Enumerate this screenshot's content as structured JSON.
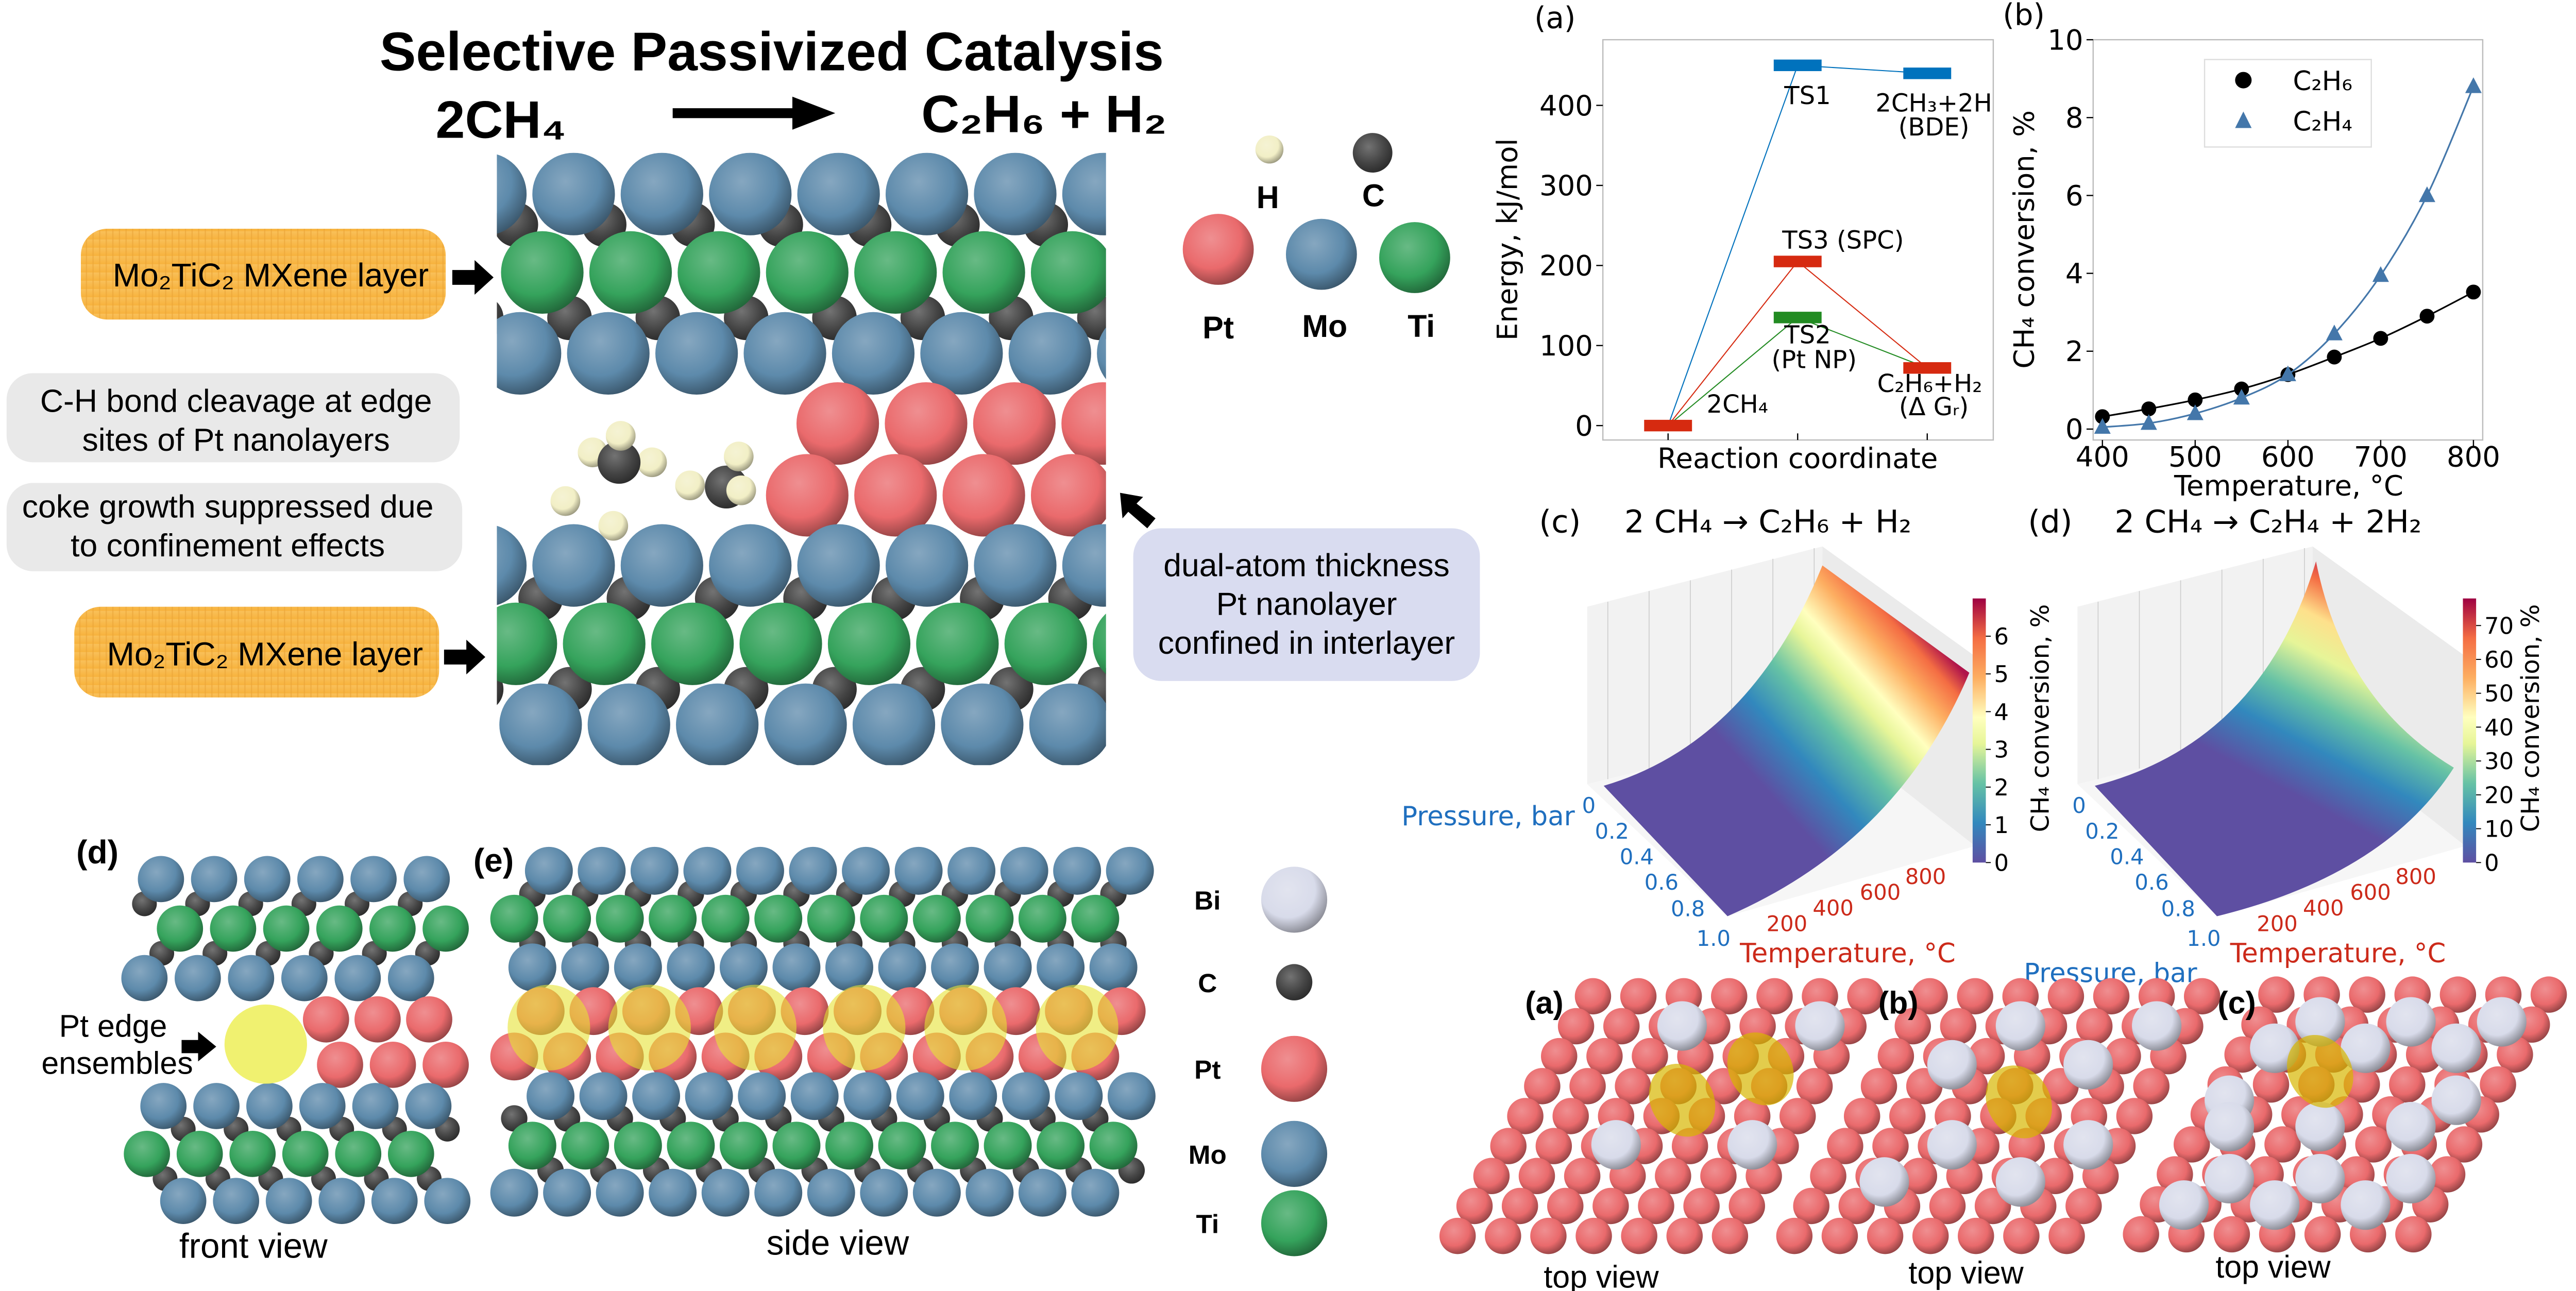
{
  "title": "Selective Passivized Catalysis",
  "reaction": {
    "reactant": "2CH₄",
    "product": "C₂H₆ + H₂"
  },
  "labels": {
    "mxene_top": "Mo₂TiC₂ MXene layer",
    "mxene_bottom": "Mo₂TiC₂ MXene layer",
    "ch_cleavage": [
      "C-H bond cleavage at edge",
      "sites of Pt nanolayers"
    ],
    "coke": [
      "coke growth suppressed due",
      "to confinement effects"
    ],
    "pt_layer": [
      "dual-atom thickness",
      "Pt nanolayer",
      "confined in interlayer"
    ]
  },
  "atom_legend_top": [
    {
      "symbol": "H",
      "color": "#f2efc6"
    },
    {
      "symbol": "C",
      "color": "#444444"
    },
    {
      "symbol": "Pt",
      "color": "#ea6a6c"
    },
    {
      "symbol": "Mo",
      "color": "#5d8aab"
    },
    {
      "symbol": "Ti",
      "color": "#35a35c"
    }
  ],
  "panel_d": {
    "label": "(d)",
    "edge_label": [
      "Pt edge",
      "ensembles"
    ],
    "caption": "front view"
  },
  "panel_e": {
    "label": "(e)",
    "caption": "side view"
  },
  "atom_legend_bottom": [
    {
      "symbol": "Bi",
      "color": "#d8dbea"
    },
    {
      "symbol": "C",
      "color": "#444444"
    },
    {
      "symbol": "Pt",
      "color": "#ea6a6c"
    },
    {
      "symbol": "Mo",
      "color": "#5d8aab"
    },
    {
      "symbol": "Ti",
      "color": "#35a35c"
    }
  ],
  "top_views": [
    {
      "label": "(a)",
      "caption": "top view"
    },
    {
      "label": "(b)",
      "caption": "top view"
    },
    {
      "label": "(c)",
      "caption": "top view"
    }
  ],
  "chart_data": [
    {
      "panel": "(a)",
      "type": "line",
      "xlabel": "Reaction coordinate",
      "ylabel": "Energy, kJ/mol",
      "ylim": [
        -18,
        482
      ],
      "yticks": [
        0,
        100,
        200,
        300,
        400
      ],
      "series": [
        {
          "name": "TS1 path",
          "color": "#0072bd",
          "points": [
            [
              1,
              0
            ],
            [
              2,
              450
            ],
            [
              3,
              440
            ]
          ]
        },
        {
          "name": "TS3 path",
          "color": "#d62a10",
          "points": [
            [
              1,
              0
            ],
            [
              2,
              205
            ],
            [
              3,
              72
            ]
          ]
        },
        {
          "name": "TS2 path",
          "color": "#228b22",
          "points": [
            [
              1,
              0
            ],
            [
              2,
              135
            ],
            [
              3,
              72
            ]
          ]
        }
      ],
      "levels": [
        {
          "x": 1,
          "y": 0,
          "color": "#d62a10"
        },
        {
          "x": 2,
          "y": 450,
          "color": "#0072bd"
        },
        {
          "x": 3,
          "y": 440,
          "color": "#0072bd"
        },
        {
          "x": 2,
          "y": 205,
          "color": "#d62a10"
        },
        {
          "x": 2,
          "y": 135,
          "color": "#228b22"
        },
        {
          "x": 3,
          "y": 72,
          "color": "#d62a10"
        }
      ],
      "annotations": [
        "2CH₄",
        "TS1",
        "2CH₃+2H",
        "(BDE)",
        "TS3 (SPC)",
        "TS2",
        "(Pt NP)",
        "C₂H₆+H₂",
        "(Δ Gᵣ)"
      ]
    },
    {
      "panel": "(b)",
      "type": "scatter",
      "xlabel": "Temperature, °C",
      "ylabel": "CH₄ conversion, %",
      "xlim": [
        390,
        810
      ],
      "ylim": [
        -0.28,
        10
      ],
      "xticks": [
        400,
        500,
        600,
        700,
        800
      ],
      "yticks": [
        0,
        2,
        4,
        6,
        8,
        10
      ],
      "legend_position": "top-right",
      "x": [
        400,
        450,
        500,
        550,
        600,
        650,
        700,
        750,
        800
      ],
      "series": [
        {
          "name": "C₂H₆",
          "marker": "circle",
          "color": "#000000",
          "values": [
            0.32,
            0.52,
            0.75,
            1.03,
            1.4,
            1.85,
            2.33,
            2.9,
            3.52
          ]
        },
        {
          "name": "C₂H₄",
          "marker": "triangle",
          "color": "#4477aa",
          "values": [
            0.05,
            0.15,
            0.4,
            0.8,
            1.4,
            2.45,
            3.95,
            6.0,
            8.8
          ]
        }
      ]
    },
    {
      "panel": "(c)",
      "type": "area",
      "title": "2 CH₄  →  C₂H₆ + H₂",
      "xlabel": "Temperature, °C",
      "ylabel": "Pressure, bar",
      "zlabel": "CH₄ conversion, %",
      "xticks": [
        200,
        400,
        600,
        800
      ],
      "yticks": [
        "0",
        "0.2",
        "0.4",
        "0.6",
        "0.8",
        "1.0"
      ],
      "colorbar_ticks": [
        0,
        1,
        2,
        3,
        4,
        5,
        6
      ],
      "colorbar_range": [
        0,
        7
      ]
    },
    {
      "panel": "(d)",
      "type": "area",
      "title": "2 CH₄  →  C₂H₄ + 2H₂",
      "xlabel": "Temperature, °C",
      "ylabel": "Pressure, bar",
      "zlabel": "CH₄ conversion, %",
      "xticks": [
        200,
        400,
        600,
        800
      ],
      "yticks": [
        "0",
        "0.2",
        "0.4",
        "0.6",
        "0.8",
        "1.0"
      ],
      "colorbar_ticks": [
        0,
        10,
        20,
        30,
        40,
        50,
        60,
        70
      ],
      "colorbar_range": [
        0,
        78
      ]
    }
  ]
}
